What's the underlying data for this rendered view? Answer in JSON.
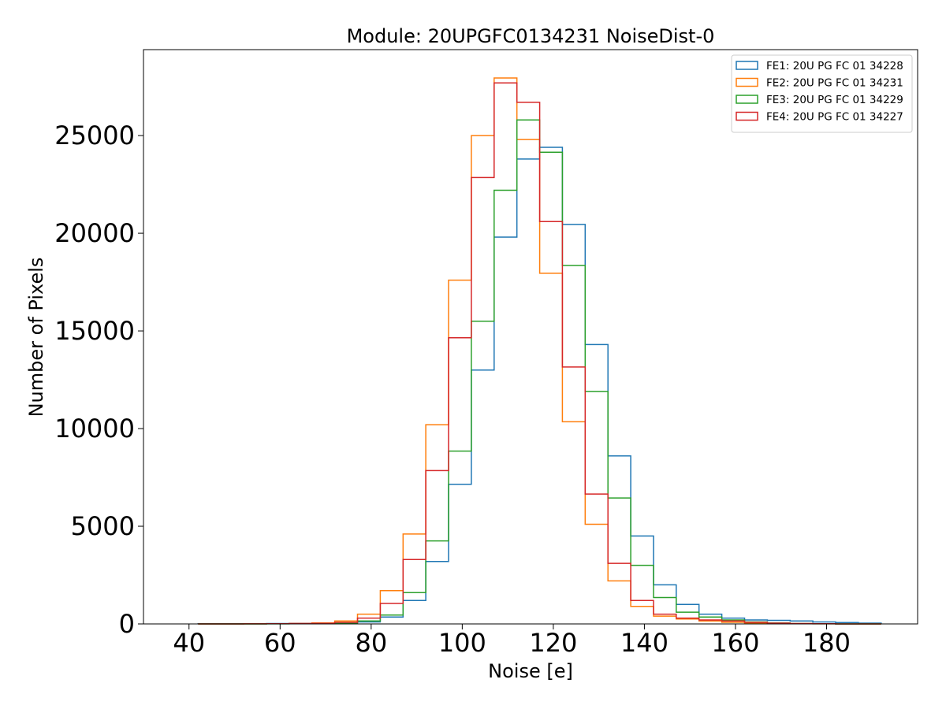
{
  "chart_data": {
    "type": "histogram",
    "title": "Module: 20UPGFC0134231 NoiseDist-0",
    "xlabel": "Noise [e]",
    "ylabel": "Number of Pixels",
    "xlim": [
      30,
      200
    ],
    "ylim": [
      0,
      29400
    ],
    "xticks": [
      40,
      60,
      80,
      100,
      120,
      140,
      160,
      180
    ],
    "yticks": [
      0,
      5000,
      10000,
      15000,
      20000,
      25000
    ],
    "legend_position": "top-right",
    "bin_edges": [
      42,
      47,
      52,
      57,
      62,
      67,
      72,
      77,
      82,
      87,
      92,
      97,
      102,
      107,
      112,
      117,
      122,
      127,
      132,
      137,
      142,
      147,
      152,
      157,
      162,
      167,
      172,
      177,
      182,
      187,
      192
    ],
    "series": [
      {
        "name": "FE1: 20U PG FC 01 34228",
        "color": "#1f77b4",
        "values": [
          10,
          10,
          10,
          20,
          30,
          40,
          60,
          100,
          350,
          1200,
          3200,
          7150,
          13000,
          19800,
          23800,
          24400,
          20450,
          14300,
          8600,
          4500,
          2000,
          1000,
          500,
          300,
          200,
          180,
          150,
          100,
          70,
          40
        ]
      },
      {
        "name": "FE2: 20U PG FC 01 34231",
        "color": "#ff7f0e",
        "values": [
          0,
          0,
          5,
          10,
          20,
          50,
          150,
          500,
          1700,
          4600,
          10200,
          17600,
          25000,
          27950,
          24800,
          17950,
          10350,
          5100,
          2200,
          900,
          400,
          250,
          150,
          80,
          40,
          20,
          10,
          5,
          0,
          0
        ]
      },
      {
        "name": "FE3: 20U PG FC 01 34229",
        "color": "#2ca02c",
        "values": [
          0,
          0,
          0,
          5,
          10,
          20,
          40,
          150,
          450,
          1600,
          4250,
          8850,
          15500,
          22200,
          25800,
          24150,
          18350,
          11900,
          6450,
          3000,
          1350,
          600,
          350,
          200,
          100,
          50,
          20,
          10,
          0,
          0
        ]
      },
      {
        "name": "FE4: 20U PG FC 01 34227",
        "color": "#d62728",
        "values": [
          0,
          0,
          5,
          10,
          20,
          30,
          80,
          300,
          1050,
          3300,
          7850,
          14650,
          22850,
          27700,
          26700,
          20600,
          13150,
          6650,
          3100,
          1200,
          500,
          300,
          200,
          150,
          80,
          40,
          20,
          10,
          0,
          0
        ]
      }
    ]
  }
}
